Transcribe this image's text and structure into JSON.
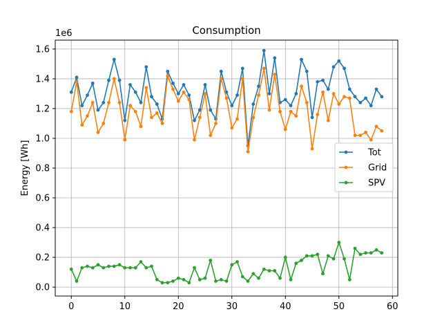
{
  "chart_data": {
    "type": "line",
    "title": "Consumption",
    "xlabel": "",
    "ylabel": "Energy [Wh]",
    "y_offset_label": "1e6",
    "xlim": [
      -3,
      61
    ],
    "ylim": [
      -0.06,
      1.66
    ],
    "y_scale_factor": 1000000,
    "xticks": [
      0,
      10,
      20,
      30,
      40,
      50,
      60
    ],
    "xtick_labels": [
      "0",
      "10",
      "20",
      "30",
      "40",
      "50",
      "60"
    ],
    "yticks": [
      0.0,
      0.2,
      0.4,
      0.6,
      0.8,
      1.0,
      1.2,
      1.4,
      1.6
    ],
    "ytick_labels": [
      "0.0",
      "0.2",
      "0.4",
      "0.6",
      "0.8",
      "1.0",
      "1.2",
      "1.4",
      "1.6"
    ],
    "grid": true,
    "legend_position": "center-right",
    "x": [
      0,
      1,
      2,
      3,
      4,
      5,
      6,
      7,
      8,
      9,
      10,
      11,
      12,
      13,
      14,
      15,
      16,
      17,
      18,
      19,
      20,
      21,
      22,
      23,
      24,
      25,
      26,
      27,
      28,
      29,
      30,
      31,
      32,
      33,
      34,
      35,
      36,
      37,
      38,
      39,
      40,
      41,
      42,
      43,
      44,
      45,
      46,
      47,
      48,
      49,
      50,
      51,
      52,
      53,
      54,
      55,
      56,
      57,
      58
    ],
    "series": [
      {
        "name": "Tot",
        "color": "#1f77b4",
        "values": [
          1.31,
          1.41,
          1.22,
          1.29,
          1.37,
          1.19,
          1.24,
          1.39,
          1.53,
          1.39,
          1.12,
          1.36,
          1.31,
          1.24,
          1.48,
          1.28,
          1.23,
          1.13,
          1.45,
          1.37,
          1.3,
          1.36,
          1.29,
          1.12,
          1.19,
          1.36,
          1.19,
          1.13,
          1.45,
          1.31,
          1.22,
          1.29,
          1.47,
          0.95,
          1.23,
          1.35,
          1.59,
          1.3,
          1.54,
          1.24,
          1.26,
          1.22,
          1.3,
          1.53,
          1.45,
          1.14,
          1.38,
          1.39,
          1.33,
          1.48,
          1.52,
          1.47,
          1.33,
          1.28,
          1.24,
          1.27,
          1.22,
          1.33,
          1.28
        ]
      },
      {
        "name": "Grid",
        "color": "#ff7f0e",
        "values": [
          1.18,
          1.38,
          1.09,
          1.15,
          1.24,
          1.04,
          1.1,
          1.24,
          1.4,
          1.24,
          0.99,
          1.22,
          1.18,
          1.08,
          1.34,
          1.14,
          1.17,
          1.1,
          1.42,
          1.33,
          1.25,
          1.31,
          1.26,
          0.99,
          1.14,
          1.3,
          1.02,
          1.1,
          1.4,
          1.27,
          1.07,
          1.13,
          1.4,
          0.91,
          1.14,
          1.29,
          1.47,
          1.19,
          1.43,
          1.18,
          1.06,
          1.18,
          1.15,
          1.35,
          1.24,
          0.93,
          1.16,
          1.31,
          1.12,
          1.3,
          1.23,
          1.28,
          1.27,
          1.02,
          1.02,
          1.04,
          0.99,
          1.08,
          1.05
        ]
      },
      {
        "name": "SPV",
        "color": "#2ca02c",
        "values": [
          0.12,
          0.04,
          0.13,
          0.14,
          0.13,
          0.15,
          0.13,
          0.14,
          0.14,
          0.15,
          0.13,
          0.13,
          0.13,
          0.17,
          0.13,
          0.14,
          0.05,
          0.03,
          0.03,
          0.04,
          0.06,
          0.05,
          0.03,
          0.13,
          0.05,
          0.06,
          0.18,
          0.04,
          0.05,
          0.04,
          0.15,
          0.17,
          0.07,
          0.04,
          0.09,
          0.06,
          0.12,
          0.11,
          0.11,
          0.06,
          0.2,
          0.05,
          0.16,
          0.18,
          0.21,
          0.21,
          0.22,
          0.09,
          0.21,
          0.19,
          0.3,
          0.19,
          0.05,
          0.26,
          0.22,
          0.23,
          0.23,
          0.25,
          0.23
        ]
      }
    ]
  }
}
